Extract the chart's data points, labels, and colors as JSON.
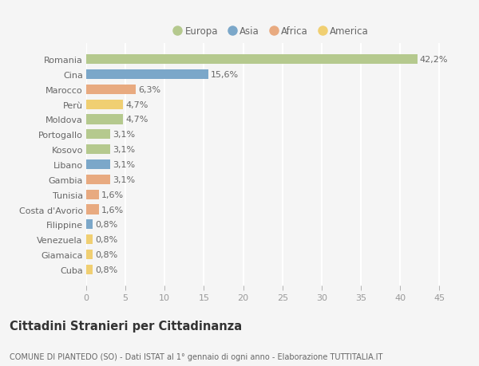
{
  "countries": [
    "Romania",
    "Cina",
    "Marocco",
    "Perù",
    "Moldova",
    "Portogallo",
    "Kosovo",
    "Libano",
    "Gambia",
    "Tunisia",
    "Costa d'Avorio",
    "Filippine",
    "Venezuela",
    "Giamaica",
    "Cuba"
  ],
  "values": [
    42.2,
    15.6,
    6.3,
    4.7,
    4.7,
    3.1,
    3.1,
    3.1,
    3.1,
    1.6,
    1.6,
    0.8,
    0.8,
    0.8,
    0.8
  ],
  "labels": [
    "42,2%",
    "15,6%",
    "6,3%",
    "4,7%",
    "4,7%",
    "3,1%",
    "3,1%",
    "3,1%",
    "3,1%",
    "1,6%",
    "1,6%",
    "0,8%",
    "0,8%",
    "0,8%",
    "0,8%"
  ],
  "continents": [
    "Europa",
    "Asia",
    "Africa",
    "America",
    "Europa",
    "Europa",
    "Europa",
    "Asia",
    "Africa",
    "Africa",
    "Africa",
    "Asia",
    "America",
    "America",
    "America"
  ],
  "continent_colors": {
    "Europa": "#b5c98e",
    "Asia": "#7ba7c9",
    "Africa": "#e8aa80",
    "America": "#f0cf72"
  },
  "legend_order": [
    "Europa",
    "Asia",
    "Africa",
    "America"
  ],
  "title": "Cittadini Stranieri per Cittadinanza",
  "subtitle": "COMUNE DI PIANTEDO (SO) - Dati ISTAT al 1° gennaio di ogni anno - Elaborazione TUTTITALIA.IT",
  "xlim": [
    0,
    47
  ],
  "xticks": [
    0,
    5,
    10,
    15,
    20,
    25,
    30,
    35,
    40,
    45
  ],
  "background_color": "#f5f5f5",
  "grid_color": "#ffffff",
  "bar_height": 0.65,
  "label_fontsize": 8,
  "tick_fontsize": 8,
  "title_fontsize": 10.5,
  "subtitle_fontsize": 7
}
